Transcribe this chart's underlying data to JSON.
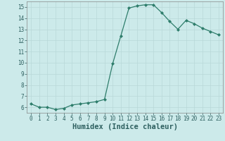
{
  "x": [
    0,
    1,
    2,
    3,
    4,
    5,
    6,
    7,
    8,
    9,
    10,
    11,
    12,
    13,
    14,
    15,
    16,
    17,
    18,
    19,
    20,
    21,
    22,
    23
  ],
  "y": [
    6.3,
    6.0,
    6.0,
    5.8,
    5.9,
    6.2,
    6.3,
    6.4,
    6.5,
    6.7,
    9.9,
    12.4,
    14.9,
    15.1,
    15.2,
    15.2,
    14.5,
    13.7,
    13.0,
    13.8,
    13.5,
    13.1,
    12.8,
    12.5
  ],
  "line_color": "#2e7d6b",
  "marker": "D",
  "marker_size": 2,
  "linewidth": 0.9,
  "bg_color": "#cceaea",
  "grid_color": "#b8d8d8",
  "xlabel": "Humidex (Indice chaleur)",
  "xlim": [
    -0.5,
    23.5
  ],
  "ylim": [
    5.5,
    15.5
  ],
  "yticks": [
    6,
    7,
    8,
    9,
    10,
    11,
    12,
    13,
    14,
    15
  ],
  "xticks": [
    0,
    1,
    2,
    3,
    4,
    5,
    6,
    7,
    8,
    9,
    10,
    11,
    12,
    13,
    14,
    15,
    16,
    17,
    18,
    19,
    20,
    21,
    22,
    23
  ],
  "tick_fontsize": 5.5,
  "xlabel_fontsize": 7.5,
  "tick_color": "#2e6060"
}
